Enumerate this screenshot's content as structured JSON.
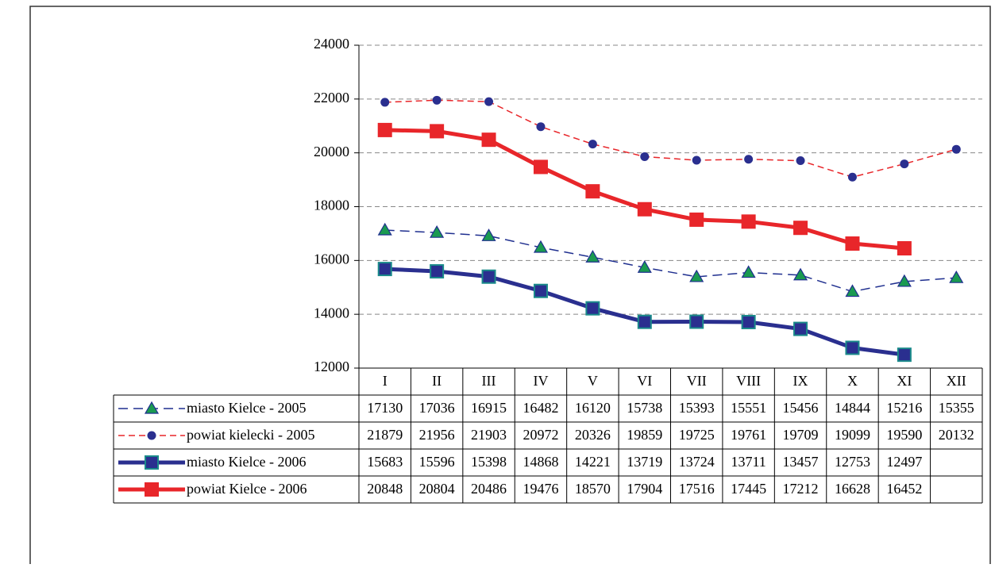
{
  "chart_data": {
    "type": "line",
    "categories": [
      "I",
      "II",
      "III",
      "IV",
      "V",
      "VI",
      "VII",
      "VIII",
      "IX",
      "X",
      "XI",
      "XII"
    ],
    "series": [
      {
        "name": "miasto Kielce - 2005",
        "color": "#1f2f8f",
        "marker": "triangle",
        "marker_color": "#1a9a50",
        "dashed": true,
        "values": [
          17130,
          17036,
          16915,
          16482,
          16120,
          15738,
          15393,
          15551,
          15456,
          14844,
          15216,
          15355
        ]
      },
      {
        "name": "powiat kielecki - 2005",
        "color": "#e8262a",
        "marker": "circle",
        "marker_color": "#2a2f8f",
        "dashed": true,
        "values": [
          21879,
          21956,
          21903,
          20972,
          20326,
          19859,
          19725,
          19761,
          19709,
          19099,
          19590,
          20132
        ]
      },
      {
        "name": "miasto Kielce - 2006",
        "color": "#2a2f8f",
        "marker": "square",
        "marker_color": "#2a2f8f",
        "dashed": false,
        "values": [
          15683,
          15596,
          15398,
          14868,
          14221,
          13719,
          13724,
          13711,
          13457,
          12753,
          12497,
          null
        ]
      },
      {
        "name": "powiat Kielce - 2006",
        "color": "#e8262a",
        "marker": "square",
        "marker_color": "#e8262a",
        "dashed": false,
        "values": [
          20848,
          20804,
          20486,
          19476,
          18570,
          17904,
          17516,
          17445,
          17212,
          16628,
          16452,
          null
        ]
      }
    ],
    "ylim": [
      12000,
      24000
    ],
    "yticks": [
      12000,
      14000,
      16000,
      18000,
      20000,
      22000,
      24000
    ],
    "grid": true
  }
}
